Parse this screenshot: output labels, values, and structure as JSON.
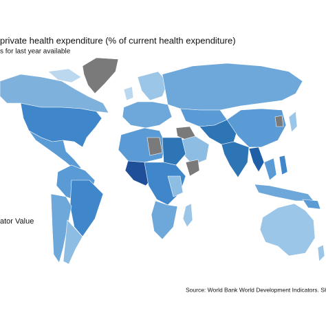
{
  "title": "private health expenditure (% of current health expenditure)",
  "subtitle": "s for last year available",
  "legend_title": "ator Value",
  "source": "Source: World Bank World Development Indicators. SH.XPI"
}
